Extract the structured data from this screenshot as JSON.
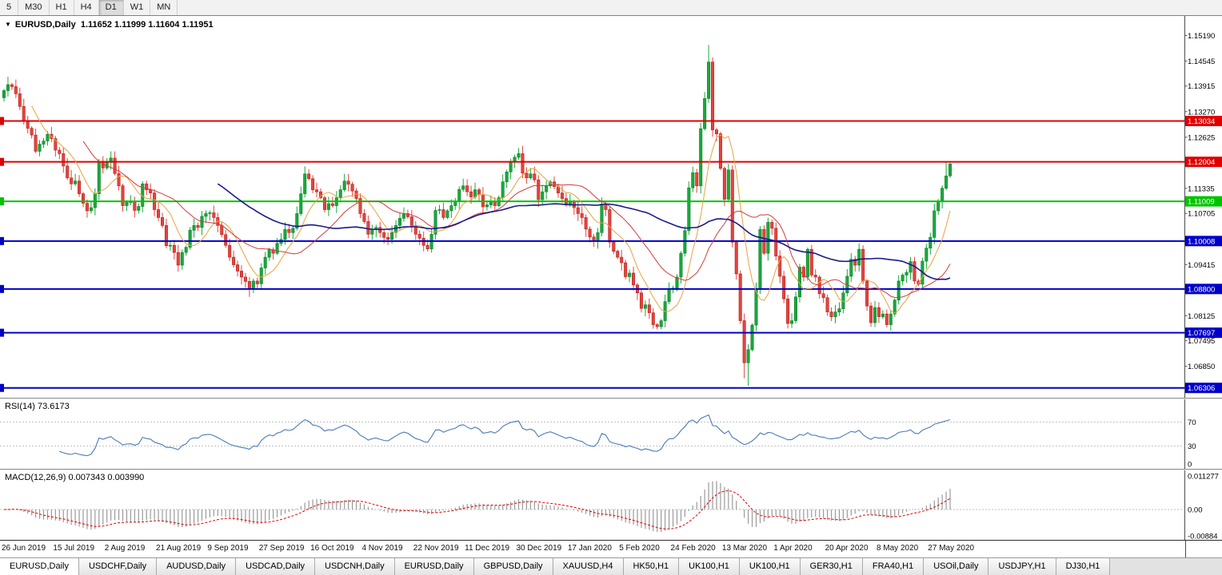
{
  "toolbar": {
    "buttons": [
      "5",
      "M30",
      "H1",
      "H4",
      "D1",
      "W1",
      "MN"
    ],
    "active": "D1"
  },
  "chart": {
    "title": {
      "symbol": "EURUSD,Daily",
      "ohlc_text": "1.11652 1.11999 1.11604 1.11951"
    },
    "axis_labels": [
      "1.15190",
      "1.14545",
      "1.13915",
      "1.13270",
      "1.12625",
      "1.11335",
      "1.10705",
      "1.09415",
      "1.08125",
      "1.07495",
      "1.06850"
    ],
    "price_tags": [
      {
        "label": "1.13034",
        "price": 1.13034,
        "color": "#e00000"
      },
      {
        "label": "1.12004",
        "price": 1.12004,
        "color": "#e00000"
      },
      {
        "label": "1.11009",
        "price": 1.11009,
        "color": "#00c400"
      },
      {
        "label": "1.10008",
        "price": 1.10008,
        "color": "#0000c8"
      },
      {
        "label": "1.08800",
        "price": 1.088,
        "color": "#0000c8"
      },
      {
        "label": "1.07697",
        "price": 1.07697,
        "color": "#0000c8"
      },
      {
        "label": "1.06306",
        "price": 1.06306,
        "color": "#0000c8"
      }
    ]
  },
  "chart_data": {
    "type": "candlestick",
    "symbol": "EURUSD",
    "timeframe": "Daily",
    "title": "EURUSD,Daily",
    "price_range": {
      "min": 1.0622,
      "max": 1.1552
    },
    "first_open": 1.1362,
    "colors": {
      "up": "#18a93c",
      "up_border": "#0e7f2b",
      "down": "#e5443e",
      "down_border": "#b7221c"
    },
    "x_labels": [
      "26 Jun 2019",
      "15 Jul 2019",
      "2 Aug 2019",
      "21 Aug 2019",
      "9 Sep 2019",
      "27 Sep 2019",
      "16 Oct 2019",
      "4 Nov 2019",
      "22 Nov 2019",
      "11 Dec 2019",
      "30 Dec 2019",
      "17 Jan 2020",
      "5 Feb 2020",
      "24 Feb 2020",
      "13 Mar 2020",
      "1 Apr 2020",
      "20 Apr 2020",
      "8 May 2020",
      "27 May 2020"
    ],
    "label_every": 13,
    "closes": [
      1.138,
      1.1395,
      1.139,
      1.1372,
      1.134,
      1.1302,
      1.1285,
      1.1268,
      1.1227,
      1.1245,
      1.1253,
      1.127,
      1.1259,
      1.123,
      1.1221,
      1.119,
      1.116,
      1.1145,
      1.1152,
      1.112,
      1.1096,
      1.1077,
      1.1085,
      1.112,
      1.1202,
      1.1185,
      1.1199,
      1.121,
      1.1171,
      1.114,
      1.109,
      1.1098,
      1.11,
      1.1078,
      1.1088,
      1.1145,
      1.113,
      1.1122,
      1.108,
      1.106,
      1.104,
      1.0989,
      1.099,
      1.0972,
      1.094,
      1.0972,
      1.0985,
      1.1028,
      1.104,
      1.1035,
      1.1063,
      1.107,
      1.1072,
      1.106,
      1.104,
      1.1017,
      1.099,
      1.096,
      1.0941,
      1.0925,
      1.091,
      1.0899,
      1.088,
      1.09,
      1.0893,
      1.0933,
      1.096,
      1.0979,
      1.097,
      1.0995,
      1.1005,
      1.103,
      1.1022,
      1.1033,
      1.107,
      1.112,
      1.117,
      1.1158,
      1.113,
      1.1125,
      1.111,
      1.108,
      1.1095,
      1.109,
      1.111,
      1.113,
      1.1152,
      1.1144,
      1.1127,
      1.1108,
      1.107,
      1.105,
      1.1018,
      1.103,
      1.1035,
      1.1022,
      1.101,
      1.1005,
      1.1022,
      1.104,
      1.1058,
      1.107,
      1.1062,
      1.104,
      1.1018,
      1.1008,
      1.099,
      1.0981,
      1.1018,
      1.1078,
      1.108,
      1.106,
      1.1077,
      1.109,
      1.11,
      1.1131,
      1.114,
      1.1125,
      1.1112,
      1.113,
      1.1118,
      1.1087,
      1.1092,
      1.11,
      1.109,
      1.111,
      1.115,
      1.1175,
      1.12,
      1.1212,
      1.1221,
      1.1172,
      1.116,
      1.117,
      1.1155,
      1.1105,
      1.1125,
      1.114,
      1.115,
      1.1138,
      1.1122,
      1.1108,
      1.1093,
      1.11,
      1.1085,
      1.107,
      1.106,
      1.1031,
      1.1011,
      1.1,
      1.1022,
      1.1094,
      1.108,
      1.0998,
      1.0975,
      1.096,
      1.0946,
      1.0911,
      1.092,
      1.089,
      1.087,
      1.0831,
      1.084,
      1.082,
      1.079,
      1.0785,
      1.08,
      1.0848,
      1.0881,
      1.0882,
      1.091,
      1.097,
      1.1027,
      1.1135,
      1.1173,
      1.114,
      1.1284,
      1.136,
      1.1452,
      1.1281,
      1.1271,
      1.1184,
      1.1106,
      1.118,
      1.0998,
      1.0918,
      1.08,
      1.0694,
      1.0727,
      1.0789,
      1.088,
      1.103,
      1.097,
      1.1048,
      1.1033,
      1.0963,
      1.0912,
      1.0855,
      1.0793,
      1.08,
      1.086,
      1.0935,
      1.091,
      1.098,
      1.0915,
      1.091,
      1.0868,
      1.0858,
      1.0822,
      1.081,
      1.0822,
      1.083,
      1.087,
      1.0912,
      1.0955,
      1.094,
      1.098,
      1.09,
      1.0837,
      1.0795,
      1.0833,
      1.081,
      1.0817,
      1.079,
      1.0817,
      1.0852,
      1.09,
      1.0915,
      1.0922,
      1.0949,
      1.09,
      1.0892,
      1.095,
      1.0983,
      1.101,
      1.1077,
      1.1101,
      1.1134,
      1.1165,
      1.11951
    ],
    "wick_overrides": {
      "64": {
        "low": 1.0879
      },
      "165": {
        "low": 1.0778
      },
      "178": {
        "high": 1.1495
      },
      "187": {
        "low": 1.0655
      },
      "188": {
        "low": 1.0636
      },
      "238": {
        "high": 1.1202
      },
      "239": {
        "open": 1.11652,
        "high": 1.11999,
        "low": 1.11604
      }
    },
    "moving_averages": [
      {
        "period": 8,
        "color": "#e8a33d",
        "width": 1
      },
      {
        "period": 21,
        "color": "#d23b3b",
        "width": 1
      },
      {
        "period": 55,
        "color": "#1a1a8c",
        "width": 1.6
      }
    ],
    "horizontal_lines": [
      {
        "price": 1.13034,
        "color": "#e00000"
      },
      {
        "price": 1.12004,
        "color": "#e00000"
      },
      {
        "price": 1.11009,
        "color": "#00c400"
      },
      {
        "price": 1.10008,
        "color": "#0000c8"
      },
      {
        "price": 1.088,
        "color": "#0000c8"
      },
      {
        "price": 1.07697,
        "color": "#0000c8"
      },
      {
        "price": 1.06306,
        "color": "#0000c8"
      }
    ],
    "indicators": {
      "rsi": {
        "label": "RSI(14)",
        "current": "73.6173",
        "period": 14,
        "range": [
          0,
          100
        ],
        "levels": [
          70,
          30
        ],
        "axis": [
          {
            "label": "70",
            "value": 70
          },
          {
            "label": "30",
            "value": 30
          },
          {
            "label": "0",
            "value": 0
          }
        ],
        "color": "#4a7ab5"
      },
      "macd": {
        "label": "MACD(12,26,9)",
        "current": "0.007343 0.003990",
        "fast": 12,
        "slow": 26,
        "signal_period": 9,
        "range": [
          -0.00884,
          0.011277
        ],
        "axis": [
          {
            "label": "0.011277",
            "value": 0.011277
          },
          {
            "label": "0.00",
            "value": 0
          },
          {
            "label": "-0.00884",
            "value": -0.00884
          }
        ],
        "histogram_color": "#9a9a9a",
        "signal_color": "#e00000"
      }
    }
  },
  "tabs": {
    "active_index": 0,
    "items": [
      "EURUSD,Daily",
      "USDCHF,Daily",
      "AUDUSD,Daily",
      "USDCAD,Daily",
      "USDCNH,Daily",
      "EURUSD,Daily",
      "GBPUSD,Daily",
      "XAUUSD,H4",
      "HK50,H1",
      "UK100,H1",
      "UK100,H1",
      "GER30,H1",
      "FRA40,H1",
      "USOil,Daily",
      "USDJPY,H1",
      "DJ30,H1"
    ]
  }
}
